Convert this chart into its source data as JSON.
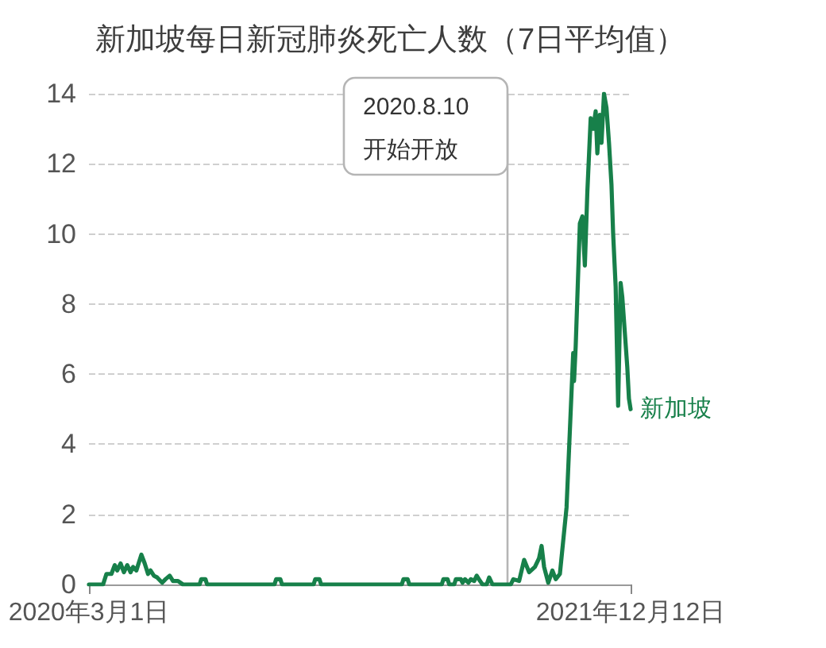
{
  "chart_data": {
    "type": "line",
    "title": "新加坡每日新冠肺炎死亡人数（7日平均值）",
    "xlim": [
      "2020-03-01",
      "2021-12-12"
    ],
    "xticks": [
      {
        "value": "2020-03-01",
        "label": "2020年3月1日"
      },
      {
        "value": "2021-12-12",
        "label": "2021年12月12日"
      }
    ],
    "ylim": [
      0,
      14
    ],
    "yticks": [
      0,
      2,
      4,
      6,
      8,
      10,
      12,
      14
    ],
    "grid": "y",
    "legend": false,
    "marker": "none",
    "line_style": "solid",
    "ref_lines": [
      {
        "axis": "x",
        "value": "2021-07-17",
        "label": "2020.8.10\n开始开放",
        "color": "#b5b5b5"
      }
    ],
    "x": [
      "2020-03-01",
      "2020-03-18",
      "2020-03-22",
      "2020-03-28",
      "2020-04-01",
      "2020-04-04",
      "2020-04-08",
      "2020-04-12",
      "2020-04-16",
      "2020-04-20",
      "2020-04-23",
      "2020-04-27",
      "2020-05-03",
      "2020-05-07",
      "2020-05-11",
      "2020-05-14",
      "2020-05-18",
      "2020-05-22",
      "2020-05-28",
      "2020-06-01",
      "2020-06-06",
      "2020-06-10",
      "2020-06-16",
      "2020-06-22",
      "2020-07-12",
      "2020-07-14",
      "2020-07-19",
      "2020-07-21",
      "2020-10-10",
      "2020-10-12",
      "2020-10-17",
      "2020-10-19",
      "2020-11-26",
      "2020-11-28",
      "2020-12-03",
      "2020-12-05",
      "2021-03-12",
      "2021-03-14",
      "2021-03-19",
      "2021-03-21",
      "2021-04-29",
      "2021-05-01",
      "2021-05-06",
      "2021-05-08",
      "2021-05-14",
      "2021-05-16",
      "2021-05-22",
      "2021-05-24",
      "2021-05-27",
      "2021-05-31",
      "2021-06-03",
      "2021-06-07",
      "2021-06-10",
      "2021-06-14",
      "2021-06-17",
      "2021-06-22",
      "2021-06-25",
      "2021-06-29",
      "2021-07-21",
      "2021-07-24",
      "2021-07-31",
      "2021-08-06",
      "2021-08-12",
      "2021-08-19",
      "2021-08-24",
      "2021-08-27",
      "2021-08-30",
      "2021-09-04",
      "2021-09-09",
      "2021-09-13",
      "2021-09-18",
      "2021-09-26",
      "2021-09-30",
      "2021-10-04",
      "2021-10-05",
      "2021-10-07",
      "2021-10-12",
      "2021-10-15",
      "2021-10-18",
      "2021-10-21",
      "2021-10-25",
      "2021-10-28",
      "2021-10-31",
      "2021-11-02",
      "2021-11-05",
      "2021-11-07",
      "2021-11-10",
      "2021-11-13",
      "2021-11-16",
      "2021-11-19",
      "2021-11-21",
      "2021-11-24",
      "2021-11-27",
      "2021-11-30",
      "2021-12-02",
      "2021-12-05",
      "2021-12-08",
      "2021-12-10",
      "2021-12-12"
    ],
    "series": [
      {
        "name": "新加坡",
        "color": "#17804a",
        "values": [
          0,
          0,
          0.3,
          0.3,
          0.55,
          0.4,
          0.6,
          0.35,
          0.55,
          0.35,
          0.5,
          0.4,
          0.85,
          0.6,
          0.3,
          0.4,
          0.25,
          0.2,
          0.05,
          0.15,
          0.25,
          0.1,
          0.1,
          0,
          0,
          0.15,
          0.15,
          0,
          0,
          0.15,
          0.15,
          0,
          0,
          0.15,
          0.15,
          0,
          0,
          0.15,
          0.15,
          0,
          0,
          0.15,
          0.15,
          0,
          0,
          0.15,
          0.15,
          0.05,
          0.15,
          0.05,
          0.15,
          0.1,
          0.25,
          0.1,
          0,
          0,
          0.2,
          0,
          0,
          0.15,
          0.1,
          0.7,
          0.35,
          0.5,
          0.75,
          1.1,
          0.5,
          0.05,
          0.4,
          0.15,
          0.3,
          2.2,
          4.4,
          6.6,
          5.8,
          6.8,
          10.3,
          10.5,
          9.1,
          11.2,
          13.3,
          13,
          13.5,
          12.3,
          13.4,
          12.6,
          14,
          13.6,
          12.6,
          11.4,
          10,
          8.5,
          5.1,
          8.6,
          8.2,
          7.2,
          6.2,
          5.3,
          5
        ]
      }
    ]
  }
}
